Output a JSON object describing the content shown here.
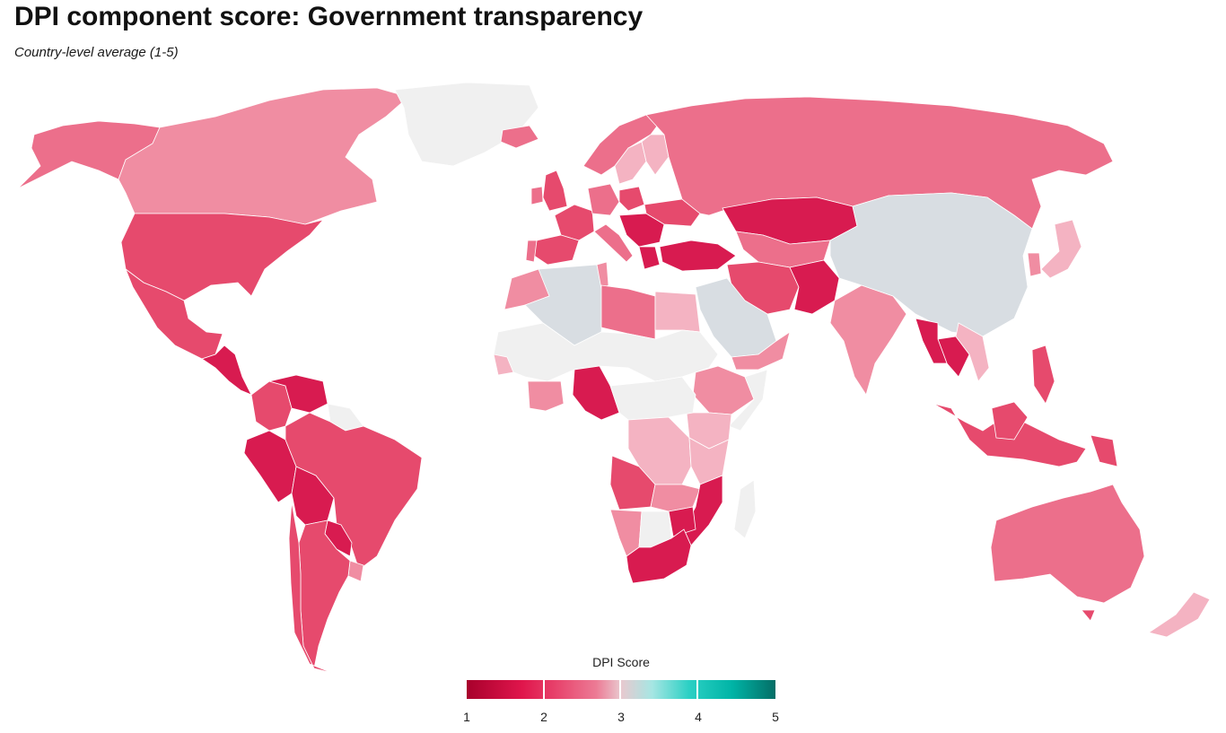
{
  "title": "DPI component score: Government transparency",
  "subtitle": "Country-level average (1-5)",
  "legend": {
    "title": "DPI Score",
    "ticks": [
      "1",
      "2",
      "3",
      "4",
      "5"
    ],
    "colors": [
      "#a8002c",
      "#e0164c",
      "#ec7b95",
      "#e9c9cf",
      "#2cd0c4",
      "#046e66"
    ]
  },
  "colors": {
    "no_data": "#f0f0f0",
    "neutral_grey": "#d8dde2",
    "very_low": "#d81b50",
    "low": "#e64a6d",
    "mid_low": "#ec6f8b",
    "mid": "#f08da2",
    "light": "#f4b3c2"
  },
  "regions": [
    {
      "name": "Alaska",
      "score_band": "mid_low"
    },
    {
      "name": "Canada",
      "score_band": "mid"
    },
    {
      "name": "United States",
      "score_band": "low"
    },
    {
      "name": "Mexico",
      "score_band": "low"
    },
    {
      "name": "Greenland",
      "score_band": "no_data"
    },
    {
      "name": "Brazil",
      "score_band": "low"
    },
    {
      "name": "Colombia",
      "score_band": "low"
    },
    {
      "name": "Venezuela",
      "score_band": "very_low"
    },
    {
      "name": "Peru",
      "score_band": "very_low"
    },
    {
      "name": "Bolivia",
      "score_band": "very_low"
    },
    {
      "name": "Argentina",
      "score_band": "low"
    },
    {
      "name": "Chile",
      "score_band": "low"
    },
    {
      "name": "Russia",
      "score_band": "mid_low"
    },
    {
      "name": "China",
      "score_band": "neutral_grey"
    },
    {
      "name": "Kazakhstan",
      "score_band": "very_low"
    },
    {
      "name": "Iran",
      "score_band": "low"
    },
    {
      "name": "Saudi Arabia",
      "score_band": "neutral_grey"
    },
    {
      "name": "India",
      "score_band": "mid"
    },
    {
      "name": "Turkey",
      "score_band": "very_low"
    },
    {
      "name": "Algeria",
      "score_band": "neutral_grey"
    },
    {
      "name": "Libya",
      "score_band": "mid_low"
    },
    {
      "name": "Egypt",
      "score_band": "light"
    },
    {
      "name": "Nigeria",
      "score_band": "very_low"
    },
    {
      "name": "DR Congo",
      "score_band": "light"
    },
    {
      "name": "Angola",
      "score_band": "low"
    },
    {
      "name": "South Africa",
      "score_band": "very_low"
    },
    {
      "name": "Australia",
      "score_band": "mid_low"
    },
    {
      "name": "Indonesia",
      "score_band": "low"
    },
    {
      "name": "Thailand",
      "score_band": "very_low"
    },
    {
      "name": "Japan",
      "score_band": "light"
    },
    {
      "name": "New Zealand",
      "score_band": "light"
    },
    {
      "name": "Madagascar",
      "score_band": "no_data"
    }
  ]
}
